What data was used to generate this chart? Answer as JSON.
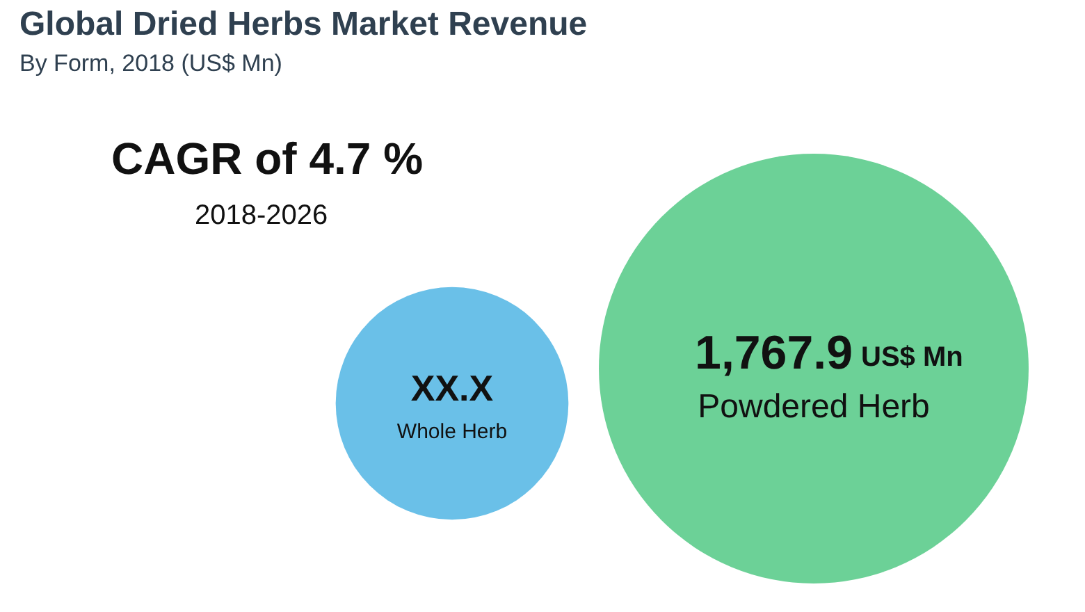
{
  "chart_data": {
    "type": "other",
    "title": "Global Dried Herbs Market Revenue",
    "subtitle": "By Form, 2018 (US$ Mn)",
    "ylabel": "US$ Mn",
    "annotations": [
      "CAGR of 4.7 %",
      "2018-2026"
    ],
    "categories": [
      "Whole Herb",
      "Powdered Herb"
    ],
    "values": [
      null,
      1767.9
    ],
    "value_labels": [
      "XX.X",
      "1,767.9"
    ],
    "colors": [
      "#5ab9e6",
      "#5ccc8c"
    ]
  }
}
